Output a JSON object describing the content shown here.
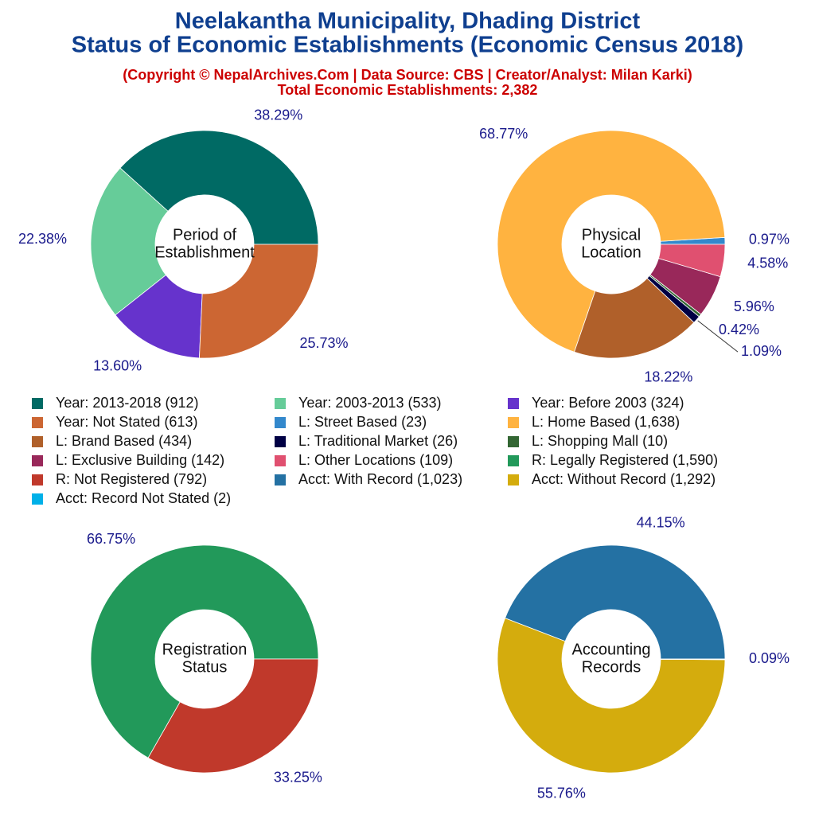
{
  "header": {
    "title": [
      "Neelakantha Municipality, Dhading District",
      "Status of Economic Establishments (Economic Census 2018)"
    ],
    "subtitle": "(Copyright © NepalArchives.Com | Data Source: CBS | Creator/Analyst: Milan Karki)",
    "total": "Total Economic Establishments: 2,382"
  },
  "chart_data": [
    {
      "type": "pie",
      "center_label": [
        "Period of",
        "Establishment"
      ],
      "categories": [
        "Year: 2013-2018 (912)",
        "Year: 2003-2013 (533)",
        "Year: Before 2003 (324)",
        "Year: Not Stated (613)"
      ],
      "values": [
        38.29,
        22.38,
        13.6,
        25.73
      ],
      "value_labels": [
        "38.29%",
        "22.38%",
        "13.60%",
        "25.73%"
      ],
      "colors": [
        "#006a64",
        "#66cc99",
        "#6633cc",
        "#cc6633"
      ]
    },
    {
      "type": "pie",
      "center_label": [
        "Physical",
        "Location"
      ],
      "categories": [
        "L: Street Based (23)",
        "L: Home Based (1,638)",
        "L: Brand Based (434)",
        "L: Traditional Market (26)",
        "L: Shopping Mall (10)",
        "L: Exclusive Building (142)",
        "L: Other Locations (109)"
      ],
      "values": [
        0.97,
        68.77,
        18.22,
        1.09,
        0.42,
        5.96,
        4.58
      ],
      "value_labels": [
        "0.97%",
        "68.77%",
        "18.22%",
        "1.09%",
        "0.42%",
        "5.96%",
        "4.58%"
      ],
      "colors": [
        "#3388cc",
        "#ffb340",
        "#b0602a",
        "#000044",
        "#336633",
        "#99285a",
        "#e05070"
      ]
    },
    {
      "type": "pie",
      "center_label": [
        "Registration",
        "Status"
      ],
      "categories": [
        "R: Legally Registered (1,590)",
        "R: Not Registered (792)"
      ],
      "values": [
        66.75,
        33.25
      ],
      "value_labels": [
        "66.75%",
        "33.25%"
      ],
      "colors": [
        "#22995a",
        "#c0392b"
      ]
    },
    {
      "type": "pie",
      "center_label": [
        "Accounting",
        "Records"
      ],
      "categories": [
        "Acct: With Record (1,023)",
        "Acct: Without Record (1,292)",
        "Acct: Record Not Stated (2)"
      ],
      "values": [
        44.15,
        55.76,
        0.09
      ],
      "value_labels": [
        "44.15%",
        "55.76%",
        "0.09%"
      ],
      "colors": [
        "#2471a3",
        "#d4ac0d",
        "#00b0e8"
      ]
    }
  ]
}
